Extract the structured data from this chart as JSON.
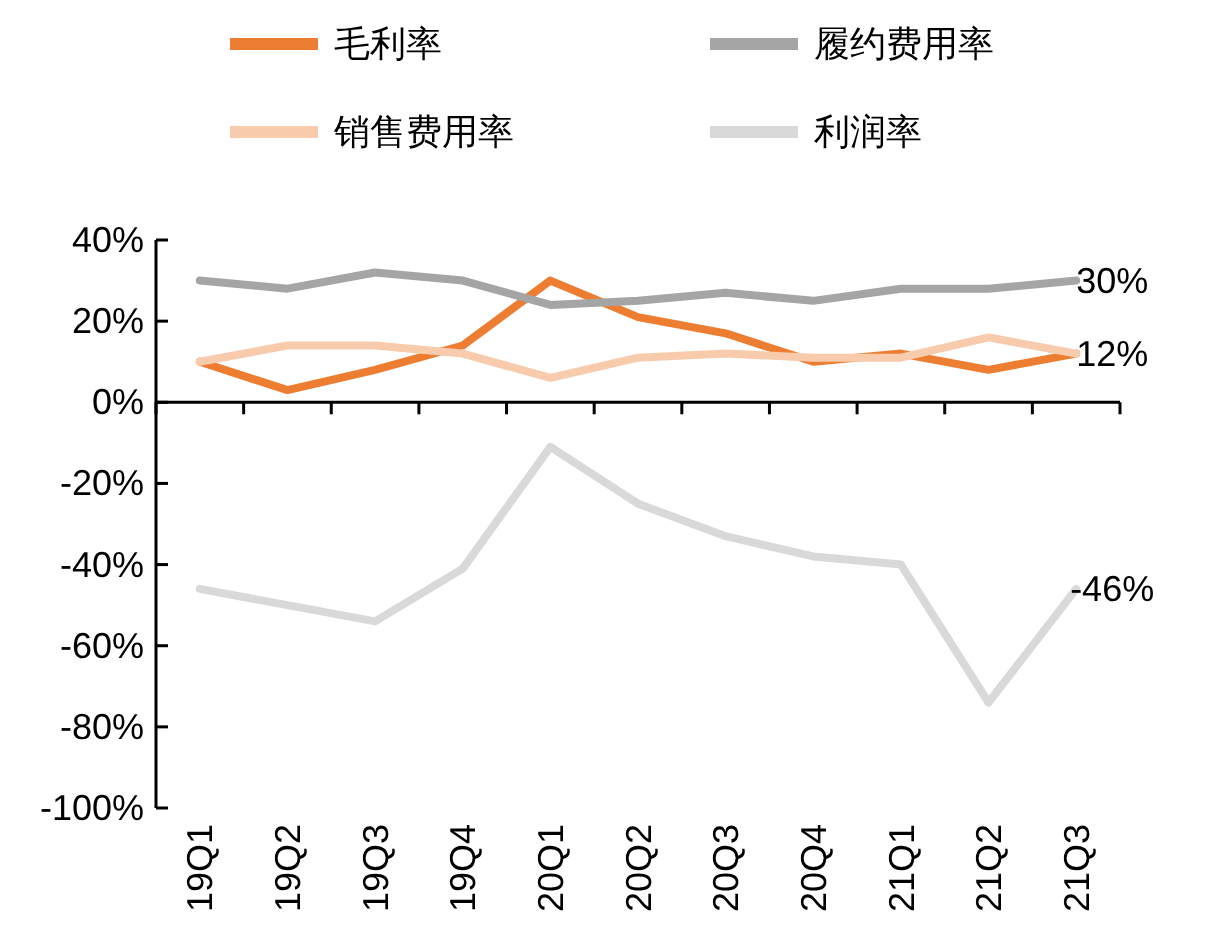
{
  "chart_data": {
    "type": "line",
    "categories": [
      "19Q1",
      "19Q2",
      "19Q3",
      "19Q4",
      "20Q1",
      "20Q2",
      "20Q3",
      "20Q4",
      "21Q1",
      "21Q2",
      "21Q3"
    ],
    "series": [
      {
        "name": "毛利率",
        "color": "#ed7d31",
        "values": [
          10,
          3,
          8,
          14,
          30,
          21,
          17,
          10,
          12,
          8,
          12
        ],
        "value_labels": [
          null,
          null,
          null,
          null,
          null,
          null,
          null,
          null,
          null,
          null,
          "12%"
        ]
      },
      {
        "name": "履约费用率",
        "color": "#a5a5a5",
        "values": [
          30,
          28,
          32,
          30,
          24,
          25,
          27,
          25,
          28,
          28,
          30
        ],
        "value_labels": [
          null,
          null,
          null,
          null,
          null,
          null,
          null,
          null,
          null,
          null,
          "30%"
        ]
      },
      {
        "name": "销售费用率",
        "color": "#f8cbad",
        "values": [
          10,
          14,
          14,
          12,
          6,
          11,
          12,
          11,
          11,
          16,
          12
        ]
      },
      {
        "name": "利润率",
        "color": "#d9d9d9",
        "values": [
          -46,
          -50,
          -54,
          -41,
          -11,
          -25,
          -33,
          -38,
          -40,
          -74,
          -46
        ],
        "value_labels": [
          null,
          null,
          null,
          null,
          null,
          null,
          null,
          null,
          null,
          null,
          "-46%"
        ]
      }
    ],
    "ylim": [
      -100,
      40
    ],
    "yticks": [
      {
        "value": 40,
        "label": "40%"
      },
      {
        "value": 20,
        "label": "20%"
      },
      {
        "value": 0,
        "label": "0%"
      },
      {
        "value": -20,
        "label": "-20%"
      },
      {
        "value": -40,
        "label": "-40%"
      },
      {
        "value": -60,
        "label": "-60%"
      },
      {
        "value": -80,
        "label": "-80%"
      },
      {
        "value": -100,
        "label": "-100%"
      }
    ],
    "legend": "top",
    "marker": "none",
    "line_style": "solid"
  }
}
